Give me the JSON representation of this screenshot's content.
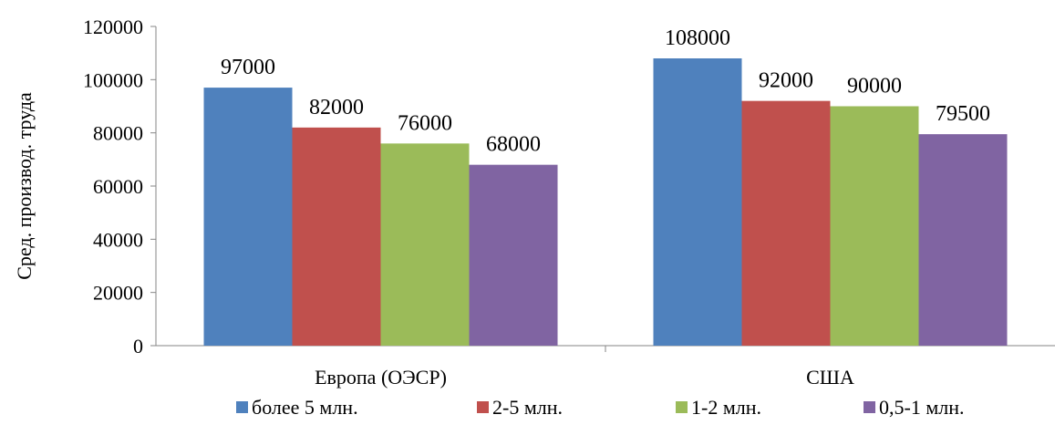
{
  "chart_data": {
    "type": "bar",
    "title": "",
    "xlabel": "",
    "ylabel": "Сред. производ. труда",
    "ylim": [
      0,
      120000
    ],
    "yticks": [
      0,
      20000,
      40000,
      60000,
      80000,
      100000,
      120000
    ],
    "grid": false,
    "legend_position": "bottom",
    "categories": [
      "Европа (ОЭСР)",
      "США"
    ],
    "series": [
      {
        "name": "более 5 млн.",
        "color": "#4F81BD",
        "values": [
          97000,
          108000
        ],
        "labels": [
          "97000",
          "108000"
        ]
      },
      {
        "name": "2-5 млн.",
        "color": "#C0504D",
        "values": [
          82000,
          92000
        ],
        "labels": [
          "82000",
          "92000"
        ]
      },
      {
        "name": "1-2 млн.",
        "color": "#9BBB59",
        "values": [
          76000,
          90000
        ],
        "labels": [
          "76000",
          "90000"
        ]
      },
      {
        "name": "0,5-1 млн.",
        "color": "#8064A2",
        "values": [
          68000,
          79500
        ],
        "labels": [
          "68000",
          "79500"
        ]
      }
    ]
  }
}
